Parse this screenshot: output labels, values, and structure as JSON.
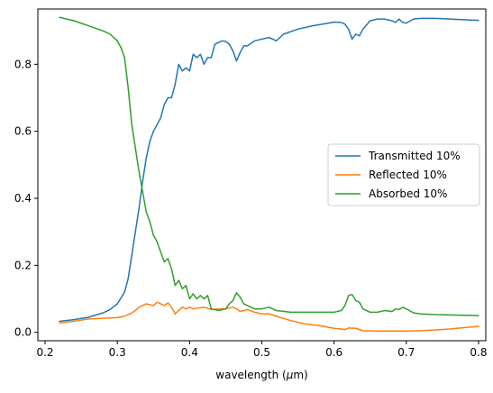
{
  "chart_data": {
    "type": "line",
    "xlabel": "wavelength ($\\mu$m)",
    "xlabel_plain": "wavelength (",
    "xlabel_mu": "μ",
    "xlabel_unit": "m)",
    "xlim": [
      0.19,
      0.81
    ],
    "ylim": [
      -0.025,
      0.965
    ],
    "xticks": [
      0.2,
      0.3,
      0.4,
      0.5,
      0.6,
      0.7,
      0.8
    ],
    "xtick_labels": [
      "0.2",
      "0.3",
      "0.4",
      "0.5",
      "0.6",
      "0.7",
      "0.8"
    ],
    "yticks": [
      0.0,
      0.2,
      0.4,
      0.6,
      0.8
    ],
    "ytick_labels": [
      "0.0",
      "0.2",
      "0.4",
      "0.6",
      "0.8"
    ],
    "grid": false,
    "legend_position": "center-right",
    "series": [
      {
        "name": "Transmitted 10%",
        "color": "#1f77b4",
        "x": [
          0.22,
          0.24,
          0.26,
          0.28,
          0.29,
          0.3,
          0.31,
          0.315,
          0.32,
          0.325,
          0.33,
          0.335,
          0.34,
          0.345,
          0.35,
          0.355,
          0.36,
          0.365,
          0.37,
          0.375,
          0.38,
          0.385,
          0.39,
          0.395,
          0.4,
          0.405,
          0.41,
          0.415,
          0.42,
          0.425,
          0.43,
          0.435,
          0.44,
          0.445,
          0.45,
          0.455,
          0.46,
          0.465,
          0.47,
          0.475,
          0.48,
          0.49,
          0.5,
          0.51,
          0.52,
          0.53,
          0.55,
          0.57,
          0.59,
          0.6,
          0.61,
          0.615,
          0.62,
          0.625,
          0.63,
          0.635,
          0.64,
          0.65,
          0.66,
          0.67,
          0.68,
          0.685,
          0.69,
          0.695,
          0.7,
          0.71,
          0.72,
          0.74,
          0.76,
          0.78,
          0.8
        ],
        "y": [
          0.033,
          0.038,
          0.045,
          0.058,
          0.068,
          0.085,
          0.12,
          0.16,
          0.23,
          0.3,
          0.37,
          0.45,
          0.52,
          0.57,
          0.6,
          0.62,
          0.64,
          0.68,
          0.7,
          0.7,
          0.74,
          0.8,
          0.78,
          0.79,
          0.78,
          0.83,
          0.82,
          0.83,
          0.8,
          0.82,
          0.82,
          0.86,
          0.865,
          0.87,
          0.868,
          0.86,
          0.84,
          0.81,
          0.835,
          0.855,
          0.855,
          0.87,
          0.875,
          0.88,
          0.87,
          0.89,
          0.905,
          0.915,
          0.922,
          0.926,
          0.925,
          0.92,
          0.905,
          0.875,
          0.89,
          0.885,
          0.905,
          0.93,
          0.935,
          0.935,
          0.93,
          0.925,
          0.935,
          0.925,
          0.923,
          0.935,
          0.937,
          0.937,
          0.935,
          0.933,
          0.931
        ]
      },
      {
        "name": "Reflected 10%",
        "color": "#ff7f0e",
        "x": [
          0.22,
          0.24,
          0.26,
          0.28,
          0.3,
          0.31,
          0.32,
          0.325,
          0.33,
          0.34,
          0.35,
          0.355,
          0.36,
          0.365,
          0.37,
          0.375,
          0.38,
          0.385,
          0.39,
          0.395,
          0.4,
          0.405,
          0.41,
          0.42,
          0.43,
          0.44,
          0.45,
          0.46,
          0.465,
          0.47,
          0.48,
          0.49,
          0.5,
          0.51,
          0.52,
          0.54,
          0.56,
          0.58,
          0.6,
          0.61,
          0.615,
          0.62,
          0.63,
          0.64,
          0.66,
          0.68,
          0.7,
          0.72,
          0.74,
          0.76,
          0.78,
          0.8
        ],
        "y": [
          0.028,
          0.033,
          0.04,
          0.042,
          0.044,
          0.048,
          0.058,
          0.065,
          0.075,
          0.085,
          0.08,
          0.09,
          0.085,
          0.08,
          0.088,
          0.075,
          0.055,
          0.065,
          0.075,
          0.07,
          0.075,
          0.07,
          0.072,
          0.075,
          0.068,
          0.07,
          0.07,
          0.075,
          0.07,
          0.062,
          0.068,
          0.06,
          0.055,
          0.055,
          0.048,
          0.035,
          0.025,
          0.02,
          0.012,
          0.01,
          0.008,
          0.013,
          0.012,
          0.005,
          0.004,
          0.004,
          0.004,
          0.005,
          0.007,
          0.01,
          0.014,
          0.018
        ]
      },
      {
        "name": "Absorbed 10%",
        "color": "#2ca02c",
        "x": [
          0.22,
          0.24,
          0.26,
          0.28,
          0.29,
          0.3,
          0.305,
          0.31,
          0.315,
          0.32,
          0.325,
          0.33,
          0.335,
          0.34,
          0.345,
          0.35,
          0.355,
          0.36,
          0.365,
          0.37,
          0.375,
          0.38,
          0.385,
          0.39,
          0.395,
          0.4,
          0.405,
          0.41,
          0.415,
          0.42,
          0.425,
          0.43,
          0.44,
          0.45,
          0.455,
          0.46,
          0.465,
          0.47,
          0.475,
          0.48,
          0.49,
          0.5,
          0.51,
          0.52,
          0.54,
          0.56,
          0.58,
          0.6,
          0.61,
          0.615,
          0.62,
          0.625,
          0.63,
          0.635,
          0.64,
          0.65,
          0.66,
          0.67,
          0.68,
          0.685,
          0.69,
          0.695,
          0.7,
          0.71,
          0.72,
          0.74,
          0.76,
          0.78,
          0.8
        ],
        "y": [
          0.94,
          0.93,
          0.915,
          0.9,
          0.89,
          0.87,
          0.85,
          0.82,
          0.73,
          0.62,
          0.55,
          0.48,
          0.42,
          0.36,
          0.33,
          0.29,
          0.27,
          0.24,
          0.21,
          0.22,
          0.19,
          0.14,
          0.155,
          0.13,
          0.14,
          0.1,
          0.115,
          0.1,
          0.11,
          0.1,
          0.11,
          0.07,
          0.065,
          0.07,
          0.085,
          0.095,
          0.118,
          0.105,
          0.085,
          0.08,
          0.07,
          0.07,
          0.075,
          0.065,
          0.06,
          0.06,
          0.06,
          0.06,
          0.065,
          0.08,
          0.11,
          0.113,
          0.095,
          0.09,
          0.07,
          0.06,
          0.06,
          0.065,
          0.062,
          0.07,
          0.068,
          0.075,
          0.07,
          0.058,
          0.055,
          0.053,
          0.052,
          0.051,
          0.05
        ]
      }
    ]
  }
}
